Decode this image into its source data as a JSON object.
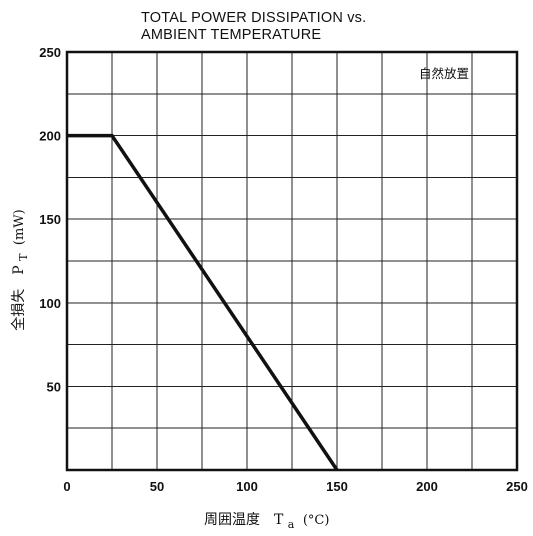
{
  "chart_data": {
    "type": "line",
    "title": [
      "TOTAL POWER DISSIPATION vs.",
      "AMBIENT TEMPERATURE"
    ],
    "xlabel": "周囲温度　T",
    "xlabel_sub": "a",
    "xlabel_unit": "(°C)",
    "ylabel": "全損失　P",
    "ylabel_sub": "T",
    "ylabel_unit": "(mW)",
    "annotation": "自然放置",
    "xlim": [
      0,
      250
    ],
    "ylim": [
      0,
      250
    ],
    "x_ticks": [
      0,
      50,
      100,
      150,
      200,
      250
    ],
    "y_ticks": [
      50,
      100,
      150,
      200,
      250
    ],
    "x_tick_labels": [
      "0",
      "50",
      "100",
      "150",
      "200",
      "250"
    ],
    "y_tick_labels": [
      "50",
      "100",
      "150",
      "200",
      "250"
    ],
    "grid": true,
    "grid_step": 25,
    "series": [
      {
        "x": [
          0,
          25,
          150
        ],
        "y": [
          200,
          200,
          0
        ]
      }
    ]
  }
}
